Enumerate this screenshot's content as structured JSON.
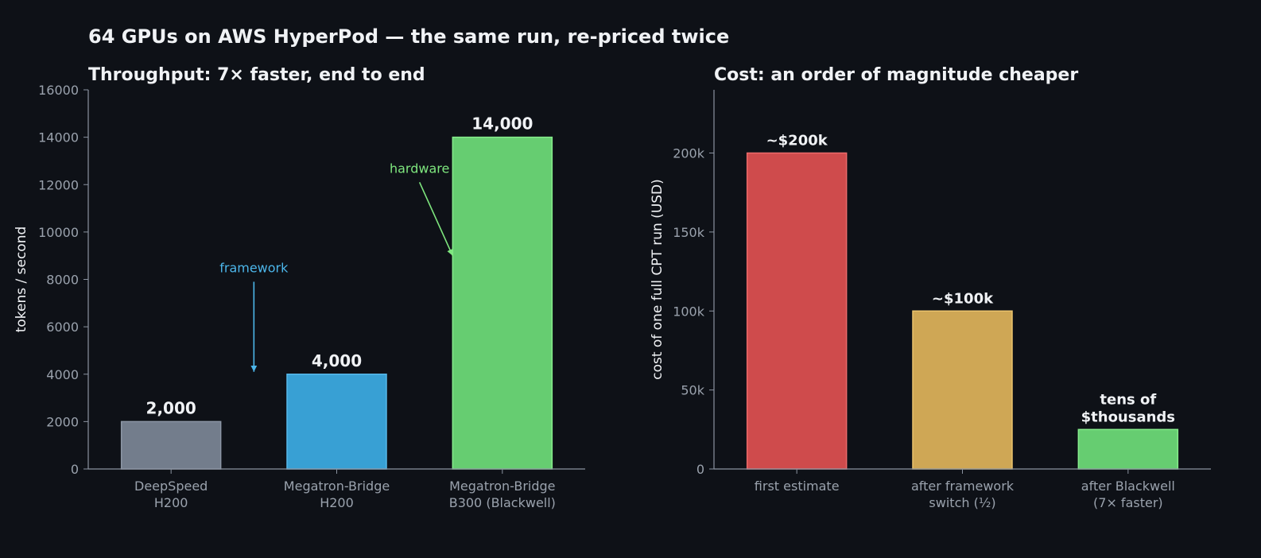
{
  "suptitle": "64 GPUs on AWS HyperPod — the same run, re-priced twice",
  "colors": {
    "background": "#0e1117",
    "axis": "#8b93a0",
    "tick_text": "#9aa2ad",
    "text": "#f0f2f5",
    "grey": "#737d8c",
    "blue": "#38a0d4",
    "green": "#66cd71",
    "red": "#cf4b4c",
    "gold": "#cfa755",
    "framework_annotation": "#4cb6ea",
    "hardware_annotation": "#7ee67e"
  },
  "chart_data": [
    {
      "type": "bar",
      "title": "Throughput: 7× faster, end to end",
      "ylabel": "tokens / second",
      "xlabel": "",
      "ylim": [
        0,
        16000
      ],
      "yticks": [
        0,
        2000,
        4000,
        6000,
        8000,
        10000,
        12000,
        14000,
        16000
      ],
      "ytick_labels": [
        "0",
        "2000",
        "4000",
        "6000",
        "8000",
        "10000",
        "12000",
        "14000",
        "16000"
      ],
      "categories": [
        [
          "DeepSpeed",
          "H200"
        ],
        [
          "Megatron-Bridge",
          "H200"
        ],
        [
          "Megatron-Bridge",
          "B300 (Blackwell)"
        ]
      ],
      "values": [
        2000,
        4000,
        14000
      ],
      "value_labels": [
        [
          "2,000"
        ],
        [
          "4,000"
        ],
        [
          "14,000"
        ]
      ],
      "bar_colors": [
        "#737d8c",
        "#38a0d4",
        "#66cd71"
      ],
      "bar_edge_colors": [
        "#8c96a5",
        "#56b8ea",
        "#86ec8c"
      ],
      "annotations": [
        {
          "text": "framework",
          "x_text": 0.5,
          "y_text": 8300,
          "x_arrow_start": 0.5,
          "y_arrow_start": 7900,
          "x_arrow_end": 0.5,
          "y_arrow_end": 4100,
          "color": "#4cb6ea"
        },
        {
          "text": "hardware",
          "x_text": 1.5,
          "y_text": 12500,
          "x_arrow_start": 1.5,
          "y_arrow_start": 12100,
          "x_arrow_end": 1.7,
          "y_arrow_end": 9000,
          "color": "#7ee67e"
        }
      ],
      "grid": false
    },
    {
      "type": "bar",
      "title": "Cost: an order of magnitude cheaper",
      "ylabel": "cost of one full CPT run (USD)",
      "xlabel": "",
      "ylim": [
        0,
        240000
      ],
      "yticks": [
        0,
        50000,
        100000,
        150000,
        200000
      ],
      "ytick_labels": [
        "0",
        "50k",
        "100k",
        "150k",
        "200k"
      ],
      "categories": [
        [
          "first estimate"
        ],
        [
          "after framework",
          "switch (½)"
        ],
        [
          "after Blackwell",
          "(7× faster)"
        ]
      ],
      "values": [
        200000,
        100000,
        25000
      ],
      "value_labels": [
        [
          "~$200k"
        ],
        [
          "~$100k"
        ],
        [
          "tens of",
          "$thousands"
        ]
      ],
      "bar_colors": [
        "#cf4b4c",
        "#cfa755",
        "#66cd71"
      ],
      "bar_edge_colors": [
        "#ec6a6a",
        "#ecc46d",
        "#86ec8c"
      ],
      "annotations": [],
      "grid": false
    }
  ]
}
